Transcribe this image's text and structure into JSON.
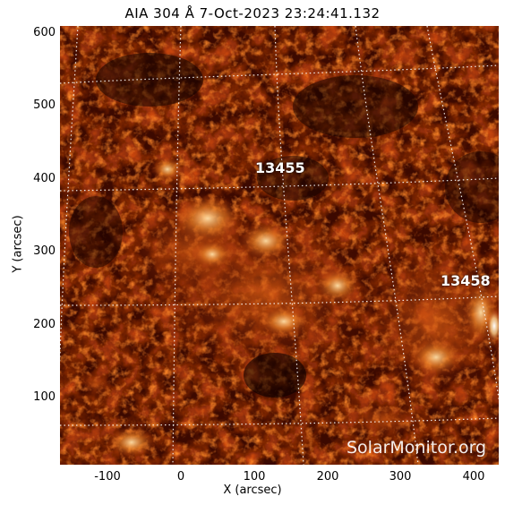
{
  "title": "AIA 304 Å  7-Oct-2023 23:24:41.132",
  "x_axis_title": "X (arcsec)",
  "y_axis_title": "Y (arcsec)",
  "x_ticks": [
    "-100",
    "0",
    "100",
    "200",
    "300",
    "400"
  ],
  "y_ticks": [
    "600",
    "500",
    "400",
    "300",
    "200",
    "100"
  ],
  "regions": [
    "13455",
    "13458"
  ],
  "watermark": "SolarMonitor.org",
  "colors": {
    "background": "#ffffff",
    "image_dark": "#1a0200",
    "image_mid": "#b83a08",
    "image_bright": "#ffd9a0",
    "grid": "#ffffff"
  }
}
